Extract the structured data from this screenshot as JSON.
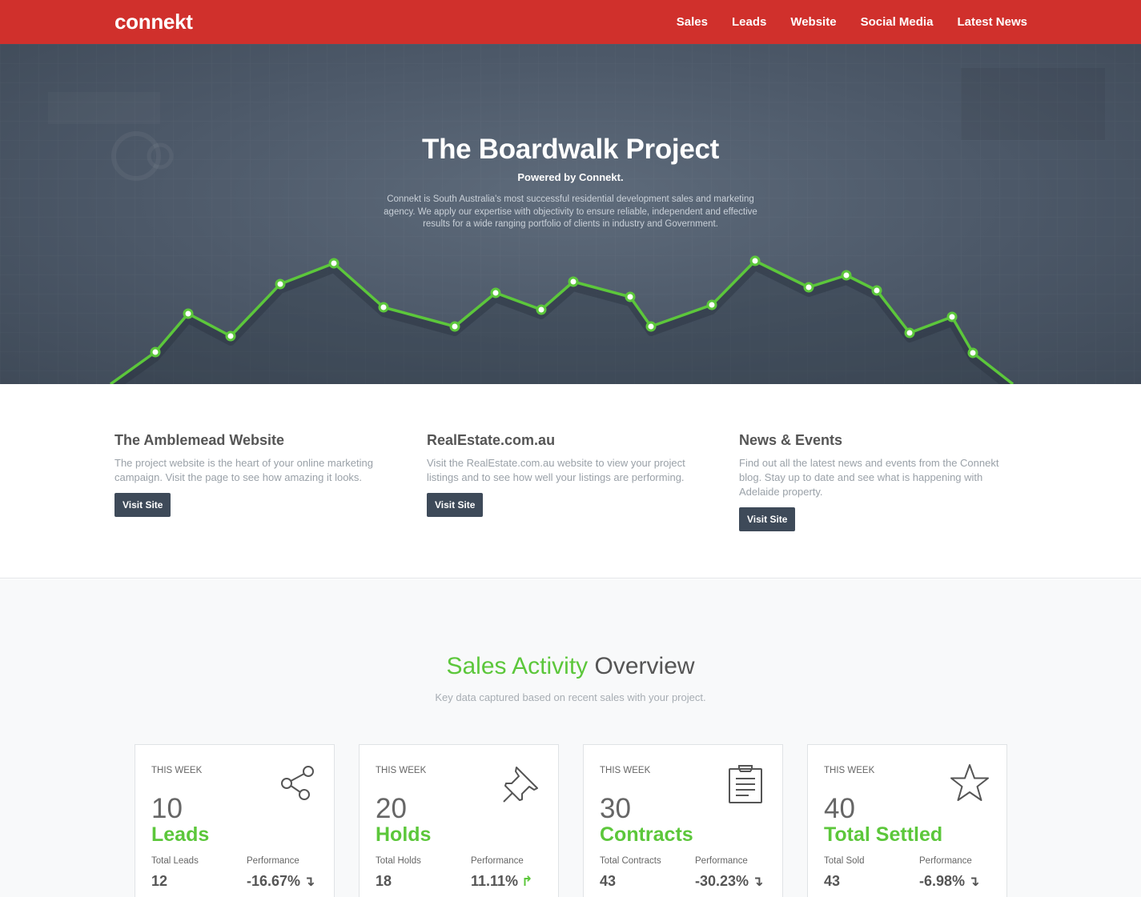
{
  "nav": {
    "logo": "connekt",
    "links": [
      "Sales",
      "Leads",
      "Website",
      "Social Media",
      "Latest News"
    ]
  },
  "hero": {
    "title": "The Boardwalk Project",
    "subtitle": "Powered by Connekt.",
    "description": "Connekt is South Australia's most successful residential development sales and marketing agency. We apply our expertise with objectivity to ensure reliable, independent and effective results for a wide ranging portfolio of clients in industry and Government.",
    "line_color": "#5cc73b"
  },
  "features": [
    {
      "title": "The Amblemead Website",
      "text": "The project website is the heart of your online marketing campaign. Visit the page to see how amazing it looks.",
      "button": "Visit Site"
    },
    {
      "title": "RealEstate.com.au",
      "text": "Visit the RealEstate.com.au website to view your project listings and to see how well your listings are performing.",
      "button": "Visit Site"
    },
    {
      "title": "News & Events",
      "text": "Find out all the latest news and events from the Connekt blog. Stay up to date and see what is happening with Adelaide property.",
      "button": "Visit Site"
    }
  ],
  "sales": {
    "title_accent": "Sales Activity",
    "title_rest": " Overview",
    "subtitle": "Key data captured based on recent sales with your project.",
    "accent_color": "#5cc73b",
    "cards": [
      {
        "week": "THIS WEEK",
        "icon": "share-icon",
        "value": "10",
        "label": "Leads",
        "total_label": "Total Leads",
        "total_value": "12",
        "perf_label": "Performance",
        "perf_value": "-16.67%",
        "perf_direction": "down"
      },
      {
        "week": "THIS WEEK",
        "icon": "pushpin-icon",
        "value": "20",
        "label": "Holds",
        "total_label": "Total Holds",
        "total_value": "18",
        "perf_label": "Performance",
        "perf_value": "11.11%",
        "perf_direction": "up"
      },
      {
        "week": "THIS WEEK",
        "icon": "clipboard-icon",
        "value": "30",
        "label": "Contracts",
        "total_label": "Total Contracts",
        "total_value": "43",
        "perf_label": "Performance",
        "perf_value": "-30.23%",
        "perf_direction": "down"
      },
      {
        "week": "THIS WEEK",
        "icon": "star-icon",
        "value": "40",
        "label": "Total Settled",
        "total_label": "Total Sold",
        "total_value": "43",
        "perf_label": "Performance",
        "perf_value": "-6.98%",
        "perf_direction": "down"
      }
    ]
  }
}
